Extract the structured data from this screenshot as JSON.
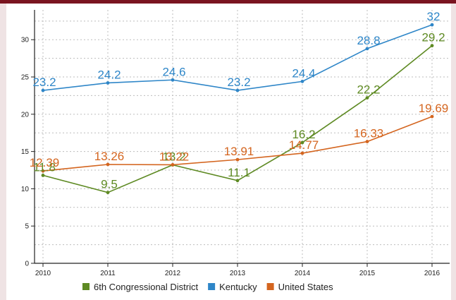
{
  "chart_data": {
    "type": "line",
    "title": "",
    "xlabel": "",
    "ylabel": "",
    "x": [
      "2010",
      "2011",
      "2012",
      "2013",
      "2014",
      "2015",
      "2016"
    ],
    "ylim": [
      0,
      34
    ],
    "yticks": [
      0,
      5,
      10,
      15,
      20,
      25,
      30
    ],
    "grid": true,
    "legend_position": "bottom",
    "series": [
      {
        "name": "6th Congressional District",
        "color": "#5e8a23",
        "values": [
          11.8,
          9.5,
          13.2,
          11.1,
          16.2,
          22.2,
          29.2
        ],
        "labels": [
          "11.8",
          "9.5",
          "13.2",
          "11.1",
          "16.2",
          "22.2",
          "29.2"
        ]
      },
      {
        "name": "Kentucky",
        "color": "#2e86c8",
        "values": [
          23.2,
          24.2,
          24.6,
          23.2,
          24.4,
          28.8,
          32
        ],
        "labels": [
          "23.2",
          "24.2",
          "24.6",
          "23.2",
          "24.4",
          "28.8",
          "32"
        ]
      },
      {
        "name": "United States",
        "color": "#d4651f",
        "values": [
          12.39,
          13.26,
          13.22,
          13.91,
          14.77,
          16.33,
          19.69
        ],
        "labels": [
          "12.39",
          "13.26",
          "13.22",
          "13.91",
          "14.77",
          "16.33",
          "19.69"
        ]
      }
    ]
  }
}
